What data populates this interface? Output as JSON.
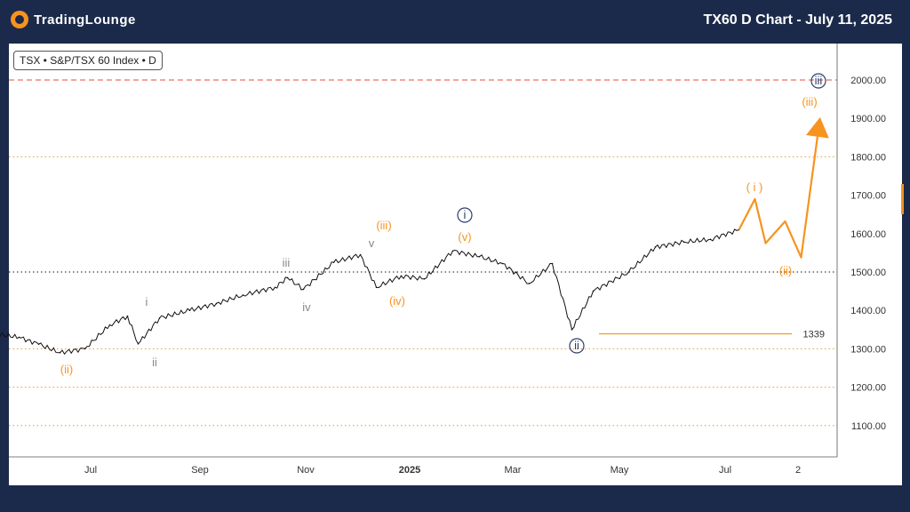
{
  "header": {
    "brand": "TradingLounge",
    "title": "TX60 D Chart - July 11, 2025"
  },
  "symbol_label": "TSX • S&P/TSX 60 Index • D",
  "colors": {
    "background": "#1b2a4a",
    "orange": "#f7931e",
    "navy": "#2c3e6b",
    "gray": "#888888",
    "price": "#111111",
    "red_dash": "#e74c3c"
  },
  "chart_data": {
    "type": "line",
    "ylim": [
      1020,
      2080
    ],
    "y_ticks": [
      "2000.00",
      "1900.00",
      "1800.00",
      "1700.00",
      "1600.00",
      "1500.00",
      "1400.00",
      "1300.00",
      "1200.00",
      "1100.00"
    ],
    "x_ticks": [
      "Jul",
      "Sep",
      "Nov",
      "2025",
      "Mar",
      "May",
      "Jul",
      "2"
    ],
    "x_ticks_bold": [
      "2025"
    ],
    "price_series": [
      {
        "x": "2024-05-20",
        "y": 1338
      },
      {
        "x": "2024-06-01",
        "y": 1330
      },
      {
        "x": "2024-06-12",
        "y": 1312
      },
      {
        "x": "2024-06-24",
        "y": 1290
      },
      {
        "x": "2024-07-08",
        "y": 1300
      },
      {
        "x": "2024-07-22",
        "y": 1362
      },
      {
        "x": "2024-08-01",
        "y": 1385
      },
      {
        "x": "2024-08-07",
        "y": 1313
      },
      {
        "x": "2024-08-19",
        "y": 1380
      },
      {
        "x": "2024-09-05",
        "y": 1400
      },
      {
        "x": "2024-09-20",
        "y": 1418
      },
      {
        "x": "2024-10-05",
        "y": 1440
      },
      {
        "x": "2024-10-23",
        "y": 1460
      },
      {
        "x": "2024-10-30",
        "y": 1485
      },
      {
        "x": "2024-11-08",
        "y": 1455
      },
      {
        "x": "2024-11-25",
        "y": 1525
      },
      {
        "x": "2024-12-10",
        "y": 1545
      },
      {
        "x": "2024-12-19",
        "y": 1460
      },
      {
        "x": "2025-01-02",
        "y": 1490
      },
      {
        "x": "2025-01-15",
        "y": 1482
      },
      {
        "x": "2025-01-31",
        "y": 1555
      },
      {
        "x": "2025-02-15",
        "y": 1540
      },
      {
        "x": "2025-02-28",
        "y": 1522
      },
      {
        "x": "2025-03-15",
        "y": 1470
      },
      {
        "x": "2025-03-28",
        "y": 1522
      },
      {
        "x": "2025-04-08",
        "y": 1350
      },
      {
        "x": "2025-04-20",
        "y": 1450
      },
      {
        "x": "2025-05-10",
        "y": 1500
      },
      {
        "x": "2025-05-25",
        "y": 1565
      },
      {
        "x": "2025-06-10",
        "y": 1578
      },
      {
        "x": "2025-06-25",
        "y": 1585
      },
      {
        "x": "2025-07-11",
        "y": 1610
      }
    ],
    "projection": [
      {
        "x": "2025-07-11",
        "y": 1610
      },
      {
        "x": "2025-07-20",
        "y": 1690
      },
      {
        "x": "2025-07-26",
        "y": 1575
      },
      {
        "x": "2025-08-06",
        "y": 1632
      },
      {
        "x": "2025-08-15",
        "y": 1538
      },
      {
        "x": "2025-08-25",
        "y": 1880
      }
    ],
    "horizontal_lines": [
      {
        "y": 2000,
        "style": "dashed",
        "color": "#e74c3c"
      },
      {
        "y": 1800,
        "style": "dotted",
        "color": "#f7931e"
      },
      {
        "y": 1500,
        "style": "dotted",
        "color": "#111111"
      },
      {
        "y": 1300,
        "style": "dotted",
        "color": "#f7931e"
      },
      {
        "y": 1200,
        "style": "dotted",
        "color": "#f7931e"
      },
      {
        "y": 1100,
        "style": "dotted",
        "color": "#f7931e"
      }
    ],
    "level_line": {
      "y": 1339,
      "label": "1339"
    },
    "wave_labels": [
      {
        "text": "(ii)",
        "color": "orange"
      },
      {
        "text": "i",
        "color": "gray"
      },
      {
        "text": "ii",
        "color": "gray"
      },
      {
        "text": "iii",
        "color": "gray"
      },
      {
        "text": "iv",
        "color": "gray"
      },
      {
        "text": "v",
        "color": "gray"
      },
      {
        "text": "(iii)",
        "color": "orange"
      },
      {
        "text": "(iv)",
        "color": "orange"
      },
      {
        "text": "(v)",
        "color": "orange"
      },
      {
        "text": "i",
        "color": "navy",
        "circled": true
      },
      {
        "text": "ii",
        "color": "navy",
        "circled": true
      },
      {
        "text": "( i )",
        "color": "orange"
      },
      {
        "text": "(ii)",
        "color": "orange"
      },
      {
        "text": "(iii)",
        "color": "orange"
      },
      {
        "text": "iii",
        "color": "navy",
        "circled": true
      }
    ]
  }
}
